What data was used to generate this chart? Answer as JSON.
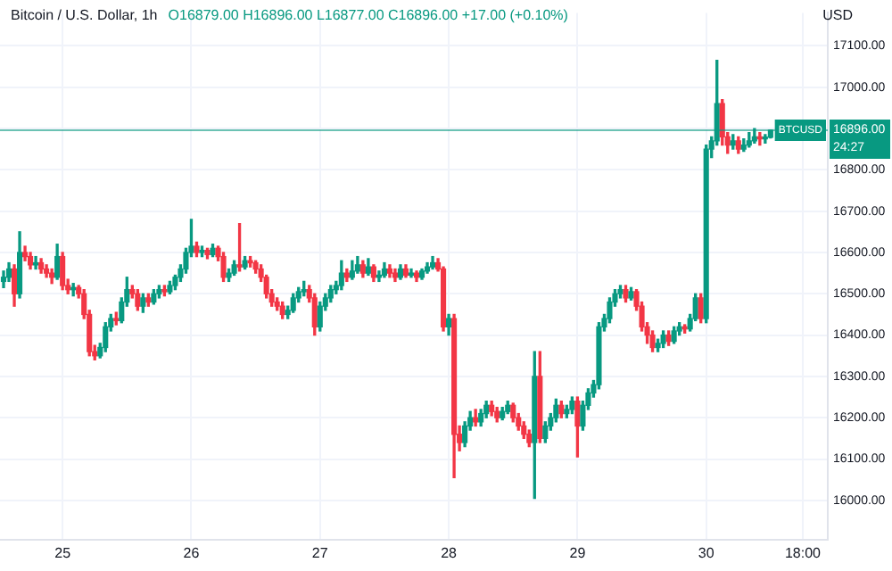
{
  "chart_data": {
    "type": "candlestick",
    "title": "Bitcoin / U.S. Dollar, 1h",
    "subtitle": "O16879.00 H16896.00 L16877.00 C16896.00 +17.00 (+0.10%)",
    "ylabel": "USD",
    "x": [
      "--11-24T13:00",
      "--11-24T14:00",
      "--11-24T15:00",
      "--11-24T16:00",
      "--11-24T17:00",
      "--11-24T18:00",
      "--11-24T19:00",
      "--11-24T20:00",
      "--11-24T21:00",
      "--11-24T22:00",
      "--11-24T23:00",
      "--11-25T00:00",
      "--11-25T01:00",
      "--11-25T02:00",
      "--11-25T03:00",
      "--11-25T04:00",
      "--11-25T05:00",
      "--11-25T06:00",
      "--11-25T07:00",
      "--11-25T08:00",
      "--11-25T09:00",
      "--11-25T10:00",
      "--11-25T11:00",
      "--11-25T12:00",
      "--11-25T13:00",
      "--11-25T14:00",
      "--11-25T15:00",
      "--11-25T16:00",
      "--11-25T17:00",
      "--11-25T18:00",
      "--11-25T19:00",
      "--11-25T20:00",
      "--11-25T21:00",
      "--11-25T22:00",
      "--11-25T23:00",
      "--11-26T00:00",
      "--11-26T01:00",
      "--11-26T02:00",
      "--11-26T03:00",
      "--11-26T04:00",
      "--11-26T05:00",
      "--11-26T06:00",
      "--11-26T07:00",
      "--11-26T08:00",
      "--11-26T09:00",
      "--11-26T10:00",
      "--11-26T11:00",
      "--11-26T12:00",
      "--11-26T13:00",
      "--11-26T14:00",
      "--11-26T15:00",
      "--11-26T16:00",
      "--11-26T17:00",
      "--11-26T18:00",
      "--11-26T19:00",
      "--11-26T20:00",
      "--11-26T21:00",
      "--11-26T22:00",
      "--11-26T23:00",
      "--11-27T00:00",
      "--11-27T01:00",
      "--11-27T02:00",
      "--11-27T03:00",
      "--11-27T04:00",
      "--11-27T05:00",
      "--11-27T06:00",
      "--11-27T07:00",
      "--11-27T08:00",
      "--11-27T09:00",
      "--11-27T10:00",
      "--11-27T11:00",
      "--11-27T12:00",
      "--11-27T13:00",
      "--11-27T14:00",
      "--11-27T15:00",
      "--11-27T16:00",
      "--11-27T17:00",
      "--11-27T18:00",
      "--11-27T19:00",
      "--11-27T20:00",
      "--11-27T21:00",
      "--11-27T22:00",
      "--11-27T23:00",
      "--11-28T00:00",
      "--11-28T01:00",
      "--11-28T02:00",
      "--11-28T03:00",
      "--11-28T04:00",
      "--11-28T05:00",
      "--11-28T06:00",
      "--11-28T07:00",
      "--11-28T08:00",
      "--11-28T09:00",
      "--11-28T10:00",
      "--11-28T11:00",
      "--11-28T12:00",
      "--11-28T13:00",
      "--11-28T14:00",
      "--11-28T15:00",
      "--11-28T16:00",
      "--11-28T17:00",
      "--11-28T18:00",
      "--11-28T19:00",
      "--11-28T20:00",
      "--11-28T21:00",
      "--11-28T22:00",
      "--11-28T23:00",
      "--11-29T00:00",
      "--11-29T01:00",
      "--11-29T02:00",
      "--11-29T03:00",
      "--11-29T04:00",
      "--11-29T05:00",
      "--11-29T06:00",
      "--11-29T07:00",
      "--11-29T08:00",
      "--11-29T09:00",
      "--11-29T10:00",
      "--11-29T11:00",
      "--11-29T12:00",
      "--11-29T13:00",
      "--11-29T14:00",
      "--11-29T15:00",
      "--11-29T16:00",
      "--11-29T17:00",
      "--11-29T18:00",
      "--11-29T19:00",
      "--11-29T20:00",
      "--11-29T21:00",
      "--11-29T22:00",
      "--11-29T23:00",
      "--11-30T00:00",
      "--11-30T01:00",
      "--11-30T02:00",
      "--11-30T03:00",
      "--11-30T04:00",
      "--11-30T05:00",
      "--11-30T06:00",
      "--11-30T07:00",
      "--11-30T08:00",
      "--11-30T09:00",
      "--11-30T10:00",
      "--11-30T11:00",
      "--11-30T12:00"
    ],
    "ohlc": [
      [
        16530,
        16555,
        16515,
        16540
      ],
      [
        16540,
        16575,
        16530,
        16560
      ],
      [
        16560,
        16570,
        16470,
        16500
      ],
      [
        16500,
        16650,
        16490,
        16600
      ],
      [
        16600,
        16615,
        16580,
        16590
      ],
      [
        16590,
        16600,
        16560,
        16570
      ],
      [
        16570,
        16590,
        16560,
        16575
      ],
      [
        16575,
        16585,
        16550,
        16560
      ],
      [
        16560,
        16570,
        16540,
        16550
      ],
      [
        16550,
        16560,
        16525,
        16540
      ],
      [
        16540,
        16620,
        16535,
        16590
      ],
      [
        16590,
        16600,
        16510,
        16520
      ],
      [
        16520,
        16535,
        16500,
        16510
      ],
      [
        16510,
        16525,
        16495,
        16515
      ],
      [
        16515,
        16520,
        16490,
        16500
      ],
      [
        16500,
        16510,
        16440,
        16450
      ],
      [
        16450,
        16460,
        16350,
        16360
      ],
      [
        16360,
        16375,
        16340,
        16350
      ],
      [
        16350,
        16380,
        16345,
        16370
      ],
      [
        16370,
        16430,
        16360,
        16420
      ],
      [
        16420,
        16450,
        16410,
        16440
      ],
      [
        16440,
        16455,
        16425,
        16435
      ],
      [
        16435,
        16490,
        16430,
        16480
      ],
      [
        16480,
        16540,
        16470,
        16510
      ],
      [
        16510,
        16520,
        16490,
        16500
      ],
      [
        16500,
        16510,
        16460,
        16470
      ],
      [
        16470,
        16500,
        16455,
        16490
      ],
      [
        16490,
        16500,
        16470,
        16480
      ],
      [
        16480,
        16510,
        16475,
        16500
      ],
      [
        16500,
        16520,
        16490,
        16510
      ],
      [
        16510,
        16520,
        16495,
        16505
      ],
      [
        16505,
        16530,
        16500,
        16520
      ],
      [
        16520,
        16545,
        16510,
        16540
      ],
      [
        16540,
        16570,
        16530,
        16560
      ],
      [
        16560,
        16610,
        16550,
        16600
      ],
      [
        16600,
        16680,
        16590,
        16615
      ],
      [
        16615,
        16625,
        16590,
        16600
      ],
      [
        16600,
        16615,
        16590,
        16605
      ],
      [
        16605,
        16610,
        16585,
        16595
      ],
      [
        16595,
        16620,
        16590,
        16610
      ],
      [
        16610,
        16615,
        16580,
        16590
      ],
      [
        16590,
        16600,
        16530,
        16540
      ],
      [
        16540,
        16560,
        16530,
        16550
      ],
      [
        16550,
        16580,
        16545,
        16570
      ],
      [
        16570,
        16670,
        16555,
        16565
      ],
      [
        16565,
        16590,
        16560,
        16580
      ],
      [
        16580,
        16590,
        16565,
        16575
      ],
      [
        16575,
        16580,
        16550,
        16560
      ],
      [
        16560,
        16570,
        16530,
        16540
      ],
      [
        16540,
        16545,
        16490,
        16500
      ],
      [
        16500,
        16510,
        16470,
        16480
      ],
      [
        16480,
        16490,
        16460,
        16470
      ],
      [
        16470,
        16480,
        16440,
        16450
      ],
      [
        16450,
        16470,
        16440,
        16460
      ],
      [
        16460,
        16500,
        16455,
        16490
      ],
      [
        16490,
        16515,
        16480,
        16505
      ],
      [
        16505,
        16530,
        16495,
        16510
      ],
      [
        16510,
        16520,
        16480,
        16490
      ],
      [
        16490,
        16500,
        16400,
        16420
      ],
      [
        16420,
        16480,
        16410,
        16470
      ],
      [
        16470,
        16500,
        16460,
        16490
      ],
      [
        16490,
        16520,
        16480,
        16510
      ],
      [
        16510,
        16530,
        16500,
        16520
      ],
      [
        16520,
        16580,
        16510,
        16550
      ],
      [
        16550,
        16560,
        16530,
        16540
      ],
      [
        16540,
        16580,
        16535,
        16555
      ],
      [
        16555,
        16590,
        16550,
        16570
      ],
      [
        16570,
        16580,
        16540,
        16550
      ],
      [
        16550,
        16585,
        16545,
        16565
      ],
      [
        16565,
        16570,
        16530,
        16540
      ],
      [
        16540,
        16555,
        16530,
        16545
      ],
      [
        16545,
        16575,
        16540,
        16560
      ],
      [
        16560,
        16570,
        16540,
        16550
      ],
      [
        16550,
        16560,
        16530,
        16540
      ],
      [
        16540,
        16570,
        16535,
        16560
      ],
      [
        16560,
        16570,
        16540,
        16545
      ],
      [
        16545,
        16560,
        16540,
        16550
      ],
      [
        16550,
        16555,
        16530,
        16540
      ],
      [
        16540,
        16560,
        16535,
        16555
      ],
      [
        16555,
        16575,
        16550,
        16565
      ],
      [
        16565,
        16590,
        16560,
        16575
      ],
      [
        16575,
        16585,
        16555,
        16560
      ],
      [
        16560,
        16565,
        16410,
        16420
      ],
      [
        16420,
        16450,
        16400,
        16440
      ],
      [
        16440,
        16450,
        16055,
        16160
      ],
      [
        16160,
        16180,
        16120,
        16140
      ],
      [
        16140,
        16190,
        16130,
        16180
      ],
      [
        16180,
        16215,
        16170,
        16200
      ],
      [
        16200,
        16220,
        16180,
        16190
      ],
      [
        16190,
        16220,
        16180,
        16210
      ],
      [
        16210,
        16240,
        16200,
        16230
      ],
      [
        16230,
        16240,
        16205,
        16215
      ],
      [
        16215,
        16225,
        16190,
        16200
      ],
      [
        16200,
        16225,
        16195,
        16215
      ],
      [
        16215,
        16240,
        16210,
        16230
      ],
      [
        16230,
        16235,
        16190,
        16200
      ],
      [
        16200,
        16210,
        16170,
        16180
      ],
      [
        16180,
        16190,
        16150,
        16160
      ],
      [
        16160,
        16170,
        16130,
        16140
      ],
      [
        16140,
        16360,
        16005,
        16300
      ],
      [
        16300,
        16360,
        16140,
        16150
      ],
      [
        16150,
        16190,
        16140,
        16180
      ],
      [
        16180,
        16210,
        16170,
        16200
      ],
      [
        16200,
        16245,
        16190,
        16230
      ],
      [
        16230,
        16240,
        16200,
        16210
      ],
      [
        16210,
        16230,
        16200,
        16220
      ],
      [
        16220,
        16250,
        16210,
        16240
      ],
      [
        16240,
        16250,
        16105,
        16180
      ],
      [
        16180,
        16240,
        16170,
        16230
      ],
      [
        16230,
        16270,
        16220,
        16260
      ],
      [
        16260,
        16290,
        16250,
        16280
      ],
      [
        16280,
        16430,
        16270,
        16420
      ],
      [
        16420,
        16450,
        16410,
        16440
      ],
      [
        16440,
        16490,
        16430,
        16480
      ],
      [
        16480,
        16510,
        16470,
        16500
      ],
      [
        16500,
        16520,
        16490,
        16510
      ],
      [
        16510,
        16520,
        16480,
        16490
      ],
      [
        16490,
        16515,
        16485,
        16505
      ],
      [
        16505,
        16510,
        16460,
        16470
      ],
      [
        16470,
        16480,
        16410,
        16420
      ],
      [
        16420,
        16430,
        16380,
        16400
      ],
      [
        16400,
        16410,
        16360,
        16370
      ],
      [
        16370,
        16390,
        16360,
        16380
      ],
      [
        16380,
        16410,
        16370,
        16400
      ],
      [
        16400,
        16410,
        16375,
        16385
      ],
      [
        16385,
        16420,
        16380,
        16410
      ],
      [
        16410,
        16430,
        16400,
        16420
      ],
      [
        16420,
        16425,
        16405,
        16415
      ],
      [
        16415,
        16450,
        16410,
        16440
      ],
      [
        16440,
        16500,
        16435,
        16490
      ],
      [
        16490,
        16500,
        16430,
        16440
      ],
      [
        16440,
        16860,
        16430,
        16850
      ],
      [
        16850,
        16880,
        16830,
        16870
      ],
      [
        16870,
        17065,
        16860,
        16960
      ],
      [
        16960,
        16970,
        16860,
        16880
      ],
      [
        16880,
        16890,
        16840,
        16860
      ],
      [
        16860,
        16885,
        16850,
        16870
      ],
      [
        16870,
        16880,
        16840,
        16850
      ],
      [
        16850,
        16875,
        16845,
        16860
      ],
      [
        16860,
        16890,
        16855,
        16870
      ],
      [
        16870,
        16900,
        16865,
        16880
      ],
      [
        16880,
        16890,
        16860,
        16875
      ],
      [
        16875,
        16885,
        16865,
        16879
      ],
      [
        16879,
        16896,
        16877,
        16896
      ]
    ],
    "colors": [
      "#089981",
      "#089981",
      "#f23645",
      "#089981",
      "#f23645",
      "#f23645",
      "#089981",
      "#f23645",
      "#f23645",
      "#f23645",
      "#089981",
      "#f23645",
      "#f23645",
      "#089981",
      "#f23645",
      "#f23645",
      "#f23645",
      "#f23645",
      "#089981",
      "#089981",
      "#089981",
      "#f23645",
      "#089981",
      "#089981",
      "#f23645",
      "#f23645",
      "#089981",
      "#f23645",
      "#089981",
      "#089981",
      "#f23645",
      "#089981",
      "#089981",
      "#089981",
      "#089981",
      "#089981",
      "#f23645",
      "#089981",
      "#f23645",
      "#089981",
      "#f23645",
      "#f23645",
      "#089981",
      "#089981",
      "#f23645",
      "#089981",
      "#f23645",
      "#f23645",
      "#f23645",
      "#f23645",
      "#f23645",
      "#f23645",
      "#f23645",
      "#089981",
      "#089981",
      "#089981",
      "#089981",
      "#f23645",
      "#f23645",
      "#089981",
      "#089981",
      "#089981",
      "#089981",
      "#089981",
      "#f23645",
      "#089981",
      "#089981",
      "#f23645",
      "#089981",
      "#f23645",
      "#089981",
      "#089981",
      "#f23645",
      "#f23645",
      "#089981",
      "#f23645",
      "#089981",
      "#f23645",
      "#089981",
      "#089981",
      "#089981",
      "#f23645",
      "#f23645",
      "#089981",
      "#f23645",
      "#f23645",
      "#089981",
      "#089981",
      "#f23645",
      "#089981",
      "#089981",
      "#f23645",
      "#f23645",
      "#089981",
      "#089981",
      "#f23645",
      "#f23645",
      "#f23645",
      "#f23645",
      "#089981",
      "#f23645",
      "#089981",
      "#089981",
      "#089981",
      "#f23645",
      "#089981",
      "#089981",
      "#f23645",
      "#089981",
      "#089981",
      "#089981",
      "#089981",
      "#089981",
      "#089981",
      "#089981",
      "#089981",
      "#f23645",
      "#089981",
      "#f23645",
      "#f23645",
      "#f23645",
      "#f23645",
      "#089981",
      "#089981",
      "#f23645",
      "#089981",
      "#089981",
      "#f23645",
      "#089981",
      "#089981",
      "#f23645",
      "#089981",
      "#089981",
      "#089981",
      "#f23645",
      "#f23645",
      "#089981",
      "#f23645",
      "#089981",
      "#089981",
      "#089981",
      "#f23645",
      "#089981",
      "#089981"
    ],
    "xlim": [
      "--11-24T12:20",
      "--11-30T22:40"
    ],
    "xticks": [
      {
        "value": "--11-25",
        "label": "25"
      },
      {
        "value": "--11-26",
        "label": "26"
      },
      {
        "value": "--11-27",
        "label": "27"
      },
      {
        "value": "--11-28",
        "label": "28"
      },
      {
        "value": "--11-29",
        "label": "29"
      },
      {
        "value": "--11-30",
        "label": "30"
      },
      {
        "value": "--11-30T18:00",
        "label": "18:00"
      }
    ],
    "ylim": [
      15905,
      17180
    ],
    "yticks": [
      {
        "value": 16000,
        "label": "16000.00"
      },
      {
        "value": 16100,
        "label": "16100.00"
      },
      {
        "value": 16200,
        "label": "16200.00"
      },
      {
        "value": 16300,
        "label": "16300.00"
      },
      {
        "value": 16400,
        "label": "16400.00"
      },
      {
        "value": 16500,
        "label": "16500.00"
      },
      {
        "value": 16600,
        "label": "16600.00"
      },
      {
        "value": 16700,
        "label": "16700.00"
      },
      {
        "value": 16800,
        "label": "16800.00"
      },
      {
        "value": 16900,
        "label": null
      },
      {
        "value": 17000,
        "label": "17000.00"
      },
      {
        "value": 17100,
        "label": "17100.00"
      }
    ],
    "ref_lines": [
      {
        "axis": "y",
        "value": 16896,
        "label": "BTCUSD",
        "color": "#089981"
      }
    ],
    "annotations": [
      "16896.00",
      "24:27"
    ],
    "grid": true,
    "legend": false
  }
}
